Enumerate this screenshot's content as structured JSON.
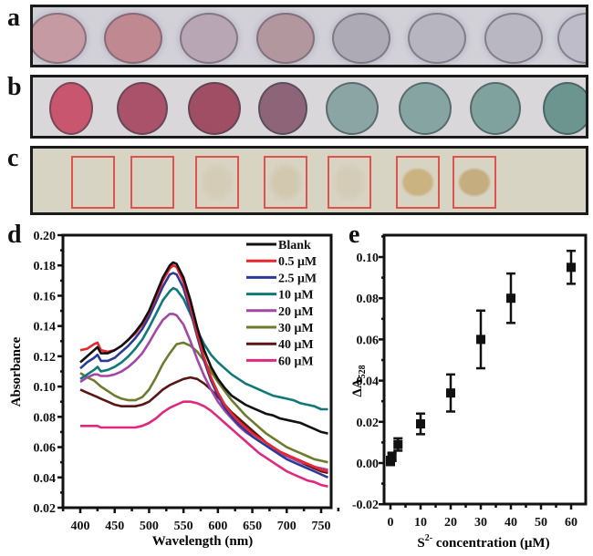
{
  "panels": {
    "a": {
      "label": "a",
      "spot_colors": [
        "#c69aa2",
        "#c08890",
        "#b9a6b4",
        "#b3979f",
        "#aeaab5",
        "#b6b5c0",
        "#b8b7c2",
        "#bdbcc8"
      ]
    },
    "b": {
      "label": "b",
      "spot_colors": [
        "#c8566e",
        "#a9526a",
        "#9f4e64",
        "#8e6478",
        "#8aa5a3",
        "#86a5a2",
        "#7fa29e",
        "#6c9590"
      ]
    },
    "c": {
      "label": "c",
      "box_color": "#e0524d",
      "spot_colors": [
        null,
        null,
        "#d1c6ac",
        "#cdbf9f",
        "#d1c6ad",
        "#c9b07a",
        "#c4a978"
      ]
    },
    "d": {
      "label": "d"
    },
    "e": {
      "label": "e"
    }
  },
  "chart_data": [
    {
      "type": "line",
      "title": "",
      "xlabel": "Wavelength (nm)",
      "ylabel": "Absorbance",
      "xlim": [
        375,
        765
      ],
      "ylim": [
        0.02,
        0.2
      ],
      "xticks": [
        400,
        450,
        500,
        550,
        600,
        650,
        700,
        750
      ],
      "yticks": [
        0.02,
        0.04,
        0.06,
        0.08,
        0.1,
        0.12,
        0.14,
        0.16,
        0.18,
        0.2
      ],
      "ytick_labels": [
        "0.02",
        "0.04",
        "0.06",
        "0.08",
        "0.10",
        "0.12",
        "0.14",
        "0.16",
        "0.18",
        "0.20"
      ],
      "legend_position": "top-right",
      "x": [
        400,
        410,
        420,
        425,
        430,
        440,
        450,
        460,
        470,
        480,
        490,
        500,
        510,
        520,
        530,
        535,
        540,
        550,
        560,
        570,
        580,
        590,
        600,
        610,
        620,
        630,
        640,
        650,
        660,
        670,
        680,
        690,
        700,
        710,
        720,
        730,
        740,
        750,
        760
      ],
      "series": [
        {
          "name": "Blank",
          "color": "#111111",
          "values": [
            0.116,
            0.12,
            0.124,
            0.126,
            0.122,
            0.122,
            0.124,
            0.127,
            0.131,
            0.136,
            0.142,
            0.15,
            0.161,
            0.172,
            0.18,
            0.182,
            0.181,
            0.172,
            0.157,
            0.139,
            0.124,
            0.113,
            0.105,
            0.099,
            0.094,
            0.091,
            0.088,
            0.086,
            0.084,
            0.082,
            0.081,
            0.079,
            0.078,
            0.077,
            0.076,
            0.074,
            0.072,
            0.07,
            0.069
          ]
        },
        {
          "name": "0.5 μM",
          "color": "#e8262d",
          "values": [
            0.124,
            0.125,
            0.128,
            0.129,
            0.124,
            0.123,
            0.124,
            0.127,
            0.131,
            0.135,
            0.141,
            0.149,
            0.159,
            0.17,
            0.178,
            0.18,
            0.179,
            0.169,
            0.153,
            0.135,
            0.119,
            0.106,
            0.096,
            0.088,
            0.082,
            0.077,
            0.073,
            0.069,
            0.066,
            0.063,
            0.06,
            0.057,
            0.055,
            0.053,
            0.051,
            0.049,
            0.047,
            0.045,
            0.044
          ]
        },
        {
          "name": "2.5 μM",
          "color": "#2b3a9a",
          "values": [
            0.112,
            0.116,
            0.119,
            0.121,
            0.117,
            0.117,
            0.119,
            0.123,
            0.127,
            0.132,
            0.138,
            0.146,
            0.156,
            0.166,
            0.174,
            0.175,
            0.174,
            0.165,
            0.15,
            0.133,
            0.117,
            0.104,
            0.094,
            0.086,
            0.08,
            0.075,
            0.071,
            0.067,
            0.064,
            0.061,
            0.058,
            0.055,
            0.052,
            0.05,
            0.048,
            0.046,
            0.044,
            0.042,
            0.04
          ]
        },
        {
          "name": "10 μM",
          "color": "#11787a",
          "values": [
            0.105,
            0.108,
            0.111,
            0.113,
            0.11,
            0.111,
            0.113,
            0.116,
            0.12,
            0.125,
            0.131,
            0.139,
            0.148,
            0.157,
            0.163,
            0.165,
            0.164,
            0.158,
            0.148,
            0.137,
            0.128,
            0.121,
            0.116,
            0.112,
            0.108,
            0.105,
            0.102,
            0.1,
            0.098,
            0.096,
            0.094,
            0.093,
            0.092,
            0.091,
            0.089,
            0.088,
            0.087,
            0.085,
            0.085
          ]
        },
        {
          "name": "20 μM",
          "color": "#a347a7",
          "values": [
            0.103,
            0.106,
            0.108,
            0.108,
            0.107,
            0.107,
            0.108,
            0.11,
            0.113,
            0.117,
            0.122,
            0.129,
            0.137,
            0.144,
            0.148,
            0.148,
            0.147,
            0.141,
            0.13,
            0.118,
            0.107,
            0.098,
            0.09,
            0.084,
            0.079,
            0.074,
            0.07,
            0.067,
            0.064,
            0.061,
            0.058,
            0.056,
            0.054,
            0.052,
            0.05,
            0.049,
            0.047,
            0.046,
            0.045
          ]
        },
        {
          "name": "30 μM",
          "color": "#6e7a2e",
          "values": [
            0.109,
            0.106,
            0.104,
            0.102,
            0.1,
            0.097,
            0.094,
            0.092,
            0.091,
            0.091,
            0.093,
            0.098,
            0.106,
            0.115,
            0.122,
            0.125,
            0.128,
            0.129,
            0.127,
            0.123,
            0.117,
            0.11,
            0.103,
            0.097,
            0.091,
            0.086,
            0.081,
            0.077,
            0.073,
            0.069,
            0.066,
            0.063,
            0.06,
            0.058,
            0.056,
            0.054,
            0.052,
            0.051,
            0.05
          ]
        },
        {
          "name": "40 μM",
          "color": "#5a1616",
          "values": [
            0.098,
            0.096,
            0.094,
            0.093,
            0.092,
            0.09,
            0.088,
            0.087,
            0.087,
            0.087,
            0.088,
            0.09,
            0.094,
            0.098,
            0.101,
            0.102,
            0.103,
            0.105,
            0.106,
            0.105,
            0.102,
            0.098,
            0.093,
            0.088,
            0.083,
            0.079,
            0.075,
            0.071,
            0.067,
            0.063,
            0.06,
            0.057,
            0.055,
            0.052,
            0.05,
            0.048,
            0.046,
            0.044,
            0.043
          ]
        },
        {
          "name": "60 μM",
          "color": "#e0287e",
          "values": [
            0.074,
            0.074,
            0.074,
            0.074,
            0.073,
            0.073,
            0.073,
            0.073,
            0.073,
            0.073,
            0.074,
            0.076,
            0.079,
            0.083,
            0.086,
            0.087,
            0.088,
            0.09,
            0.09,
            0.089,
            0.087,
            0.084,
            0.08,
            0.076,
            0.072,
            0.068,
            0.064,
            0.06,
            0.056,
            0.053,
            0.05,
            0.047,
            0.044,
            0.042,
            0.04,
            0.038,
            0.037,
            0.035,
            0.034
          ]
        }
      ]
    },
    {
      "type": "scatter",
      "title": "",
      "xlabel": "S²⁻ concentration  (μM)",
      "xlabel_base": "S",
      "xlabel_sup": "2-",
      "xlabel_rest": " concentration  (μM)",
      "ylabel": "ΔA528",
      "ylabel_base": "ΔA",
      "ylabel_sub": "528",
      "xlim": [
        -2,
        64
      ],
      "ylim": [
        -0.02,
        0.11
      ],
      "xticks": [
        0,
        10,
        20,
        30,
        40,
        50,
        60
      ],
      "xtick_labels": [
        "0",
        "10",
        "20",
        "30",
        "40",
        "50",
        "60"
      ],
      "yticks": [
        -0.02,
        0.0,
        0.02,
        0.04,
        0.06,
        0.08,
        0.1
      ],
      "ytick_labels": [
        "-0.02",
        "0.00",
        "0.02",
        "0.04",
        "0.06",
        "0.08",
        "0.10"
      ],
      "marker": "square",
      "color": "#111111",
      "points": [
        {
          "x": 0,
          "y": 0.001,
          "err": 0.002
        },
        {
          "x": 0.5,
          "y": 0.003,
          "err": 0.002
        },
        {
          "x": 2.5,
          "y": 0.009,
          "err": 0.003
        },
        {
          "x": 10,
          "y": 0.019,
          "err": 0.005
        },
        {
          "x": 20,
          "y": 0.034,
          "err": 0.009
        },
        {
          "x": 30,
          "y": 0.06,
          "err": 0.014
        },
        {
          "x": 40,
          "y": 0.08,
          "err": 0.012
        },
        {
          "x": 60,
          "y": 0.095,
          "err": 0.008
        }
      ]
    }
  ]
}
